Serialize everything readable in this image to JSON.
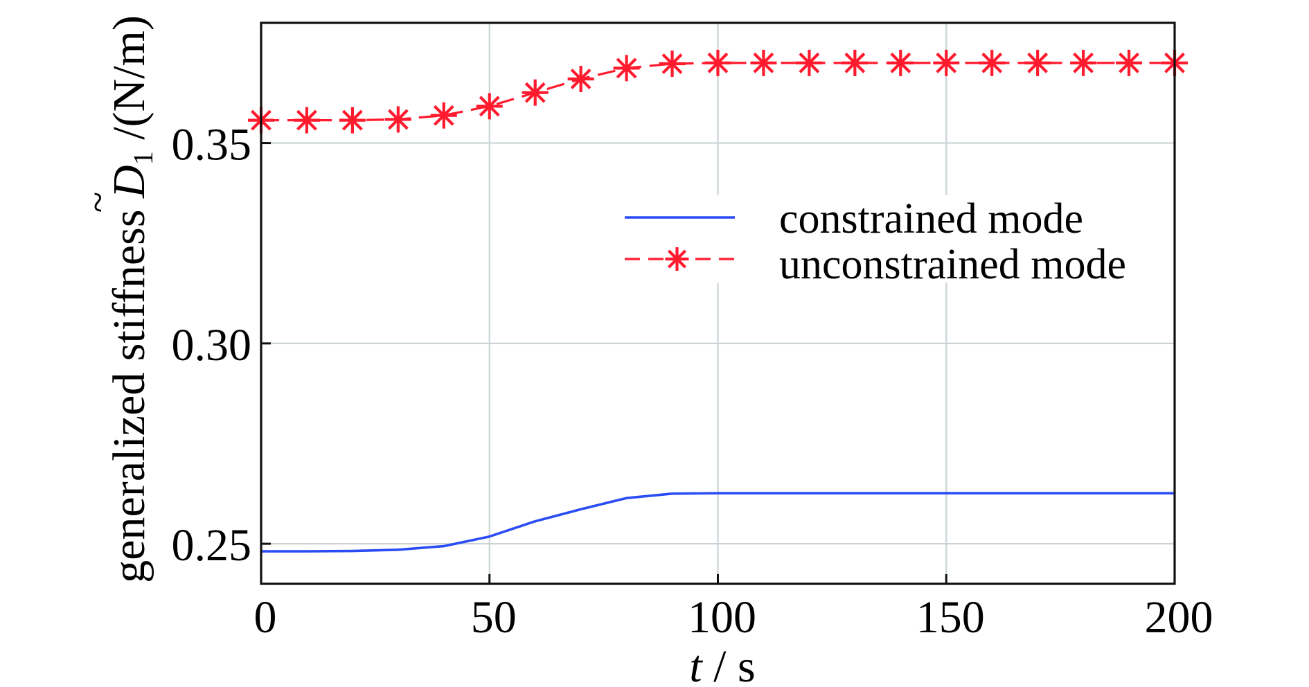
{
  "chart_data": {
    "type": "line",
    "title": "",
    "xlabel": "t / s",
    "xlabel_parts": {
      "var": "t",
      "unit": " / s"
    },
    "ylabel": "generalized stiffness D̃1 /(N/m)",
    "ylabel_parts": {
      "prefix": "generalized stiffness ",
      "var": "D",
      "tilde": "~",
      "sub": "1",
      "unit": " /(N/m)"
    },
    "xlim": [
      0,
      200
    ],
    "ylim": [
      0.24,
      0.38
    ],
    "x_ticks": [
      0,
      50,
      100,
      150,
      200
    ],
    "x_tick_labels": [
      "0",
      "50",
      "100",
      "150",
      "200"
    ],
    "y_ticks": [
      0.25,
      0.3,
      0.35
    ],
    "y_tick_labels": [
      "0.25",
      "0.30",
      "0.35"
    ],
    "grid": true,
    "legend_position": "center-right",
    "x": [
      0,
      10,
      20,
      30,
      40,
      50,
      60,
      70,
      80,
      90,
      100,
      110,
      120,
      130,
      140,
      150,
      160,
      170,
      180,
      190,
      200
    ],
    "series": [
      {
        "name": "constrained mode",
        "color": "#2a4cf5",
        "style": "solid",
        "marker": "none",
        "values": [
          0.2481,
          0.2481,
          0.2482,
          0.2485,
          0.2494,
          0.2518,
          0.2556,
          0.2586,
          0.2614,
          0.2625,
          0.2626,
          0.2626,
          0.2626,
          0.2626,
          0.2626,
          0.2626,
          0.2626,
          0.2626,
          0.2626,
          0.2626,
          0.2626
        ]
      },
      {
        "name": "unconstrained mode",
        "color": "#ff1a2e",
        "style": "dashed",
        "marker": "asterisk",
        "values": [
          0.3557,
          0.3557,
          0.3557,
          0.3559,
          0.3569,
          0.3592,
          0.3626,
          0.366,
          0.3687,
          0.3698,
          0.37,
          0.37,
          0.37,
          0.37,
          0.37,
          0.37,
          0.37,
          0.37,
          0.37,
          0.37,
          0.37
        ]
      }
    ]
  },
  "colors": {
    "axis": "#111111",
    "grid": "#c9d3d6",
    "background": "#ffffff"
  }
}
